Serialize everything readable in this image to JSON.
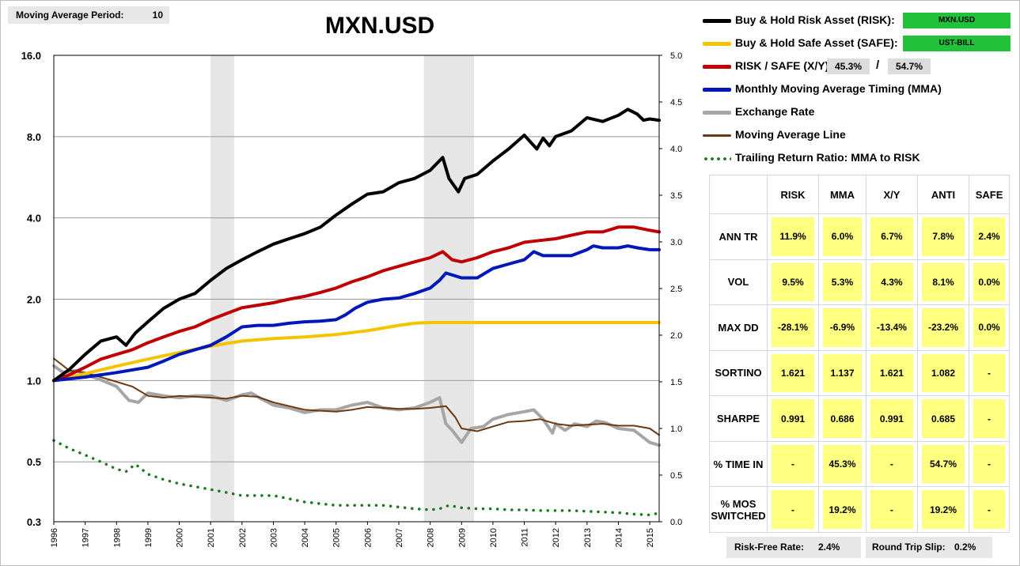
{
  "settings": {
    "mavg_label": "Moving Average Period:",
    "mavg_value": "10"
  },
  "chart_data": {
    "type": "line",
    "title": "MXN.USD",
    "x_years": [
      "1996",
      "1997",
      "1998",
      "1999",
      "2000",
      "2001",
      "2002",
      "2003",
      "2004",
      "2005",
      "2006",
      "2007",
      "2008",
      "2009",
      "2010",
      "2011",
      "2012",
      "2013",
      "2014",
      "2015"
    ],
    "y_left_ticks": [
      "0.3",
      "0.5",
      "1.0",
      "2.0",
      "4.0",
      "8.0",
      "16.0"
    ],
    "y_left_scale": "log",
    "y_right_ticks": [
      "0.0",
      "0.5",
      "1.0",
      "1.5",
      "2.0",
      "2.5",
      "3.0",
      "3.5",
      "4.0",
      "4.5",
      "5.0"
    ],
    "y_right_range": [
      0,
      5
    ],
    "shaded_periods": [
      [
        2001.0,
        2001.75
      ],
      [
        2007.8,
        2009.4
      ]
    ],
    "series": [
      {
        "name": "Buy & Hold Risk Asset (RISK):",
        "color": "#000000",
        "axis": "left",
        "x": [
          1996,
          1996.5,
          1997,
          1997.5,
          1998,
          1998.3,
          1998.6,
          1999,
          1999.5,
          2000,
          2000.5,
          2001,
          2001.5,
          2002,
          2002.5,
          2003,
          2003.5,
          2004,
          2004.5,
          2005,
          2005.5,
          2006,
          2006.5,
          2007,
          2007.5,
          2008,
          2008.4,
          2008.6,
          2008.9,
          2009.1,
          2009.5,
          2010,
          2010.5,
          2011,
          2011.4,
          2011.6,
          2011.8,
          2012,
          2012.5,
          2013,
          2013.5,
          2014,
          2014.3,
          2014.6,
          2014.8,
          2015,
          2015.3
        ],
        "values": [
          1.0,
          1.1,
          1.25,
          1.4,
          1.45,
          1.35,
          1.5,
          1.65,
          1.85,
          2.0,
          2.1,
          2.35,
          2.6,
          2.8,
          3.0,
          3.2,
          3.35,
          3.5,
          3.7,
          4.1,
          4.5,
          4.9,
          5.0,
          5.4,
          5.6,
          6.0,
          6.7,
          5.6,
          5.0,
          5.6,
          5.8,
          6.5,
          7.2,
          8.1,
          7.2,
          7.9,
          7.4,
          8.0,
          8.4,
          9.4,
          9.1,
          9.6,
          10.1,
          9.7,
          9.2,
          9.3,
          9.2
        ]
      },
      {
        "name": "Buy & Hold Safe Asset (SAFE):",
        "color": "#f5c400",
        "axis": "left",
        "x": [
          1996,
          1997,
          1998,
          1999,
          2000,
          2001,
          2002,
          2003,
          2004,
          2005,
          2006,
          2007,
          2007.5,
          2008,
          2009,
          2010,
          2011,
          2012,
          2013,
          2014,
          2015.3
        ],
        "values": [
          1.0,
          1.06,
          1.13,
          1.2,
          1.27,
          1.34,
          1.4,
          1.43,
          1.45,
          1.48,
          1.53,
          1.6,
          1.63,
          1.64,
          1.64,
          1.64,
          1.64,
          1.64,
          1.64,
          1.64,
          1.64
        ]
      },
      {
        "name": "RISK / SAFE (X/Y):",
        "color": "#c00000",
        "axis": "left",
        "x": [
          1996,
          1996.5,
          1997,
          1997.5,
          1998,
          1998.5,
          1999,
          1999.5,
          2000,
          2000.5,
          2001,
          2001.5,
          2002,
          2002.5,
          2003,
          2003.5,
          2004,
          2004.5,
          2005,
          2005.5,
          2006,
          2006.5,
          2007,
          2007.5,
          2008,
          2008.4,
          2008.7,
          2009,
          2009.5,
          2010,
          2010.5,
          2011,
          2011.5,
          2012,
          2012.5,
          2013,
          2013.5,
          2014,
          2014.5,
          2015,
          2015.3
        ],
        "values": [
          1.0,
          1.05,
          1.12,
          1.2,
          1.25,
          1.3,
          1.38,
          1.45,
          1.52,
          1.58,
          1.68,
          1.77,
          1.86,
          1.9,
          1.94,
          2.0,
          2.05,
          2.12,
          2.2,
          2.32,
          2.42,
          2.55,
          2.65,
          2.75,
          2.85,
          3.0,
          2.8,
          2.75,
          2.85,
          3.0,
          3.1,
          3.25,
          3.3,
          3.35,
          3.45,
          3.55,
          3.55,
          3.7,
          3.7,
          3.6,
          3.55
        ]
      },
      {
        "name": "Monthly Moving Average Timing (MMA)",
        "color": "#0018b8",
        "axis": "left",
        "x": [
          1996,
          1997,
          1998,
          1999,
          1999.5,
          2000,
          2000.5,
          2001,
          2001.5,
          2002,
          2002.5,
          2003,
          2003.5,
          2004,
          2004.5,
          2005,
          2005.3,
          2005.6,
          2006,
          2006.5,
          2007,
          2007.5,
          2008,
          2008.3,
          2008.5,
          2009,
          2009.5,
          2010,
          2010.5,
          2011,
          2011.3,
          2011.6,
          2012,
          2012.5,
          2013,
          2013.2,
          2013.5,
          2014,
          2014.3,
          2014.6,
          2015,
          2015.3
        ],
        "values": [
          1.0,
          1.03,
          1.07,
          1.12,
          1.18,
          1.25,
          1.3,
          1.35,
          1.45,
          1.58,
          1.6,
          1.6,
          1.63,
          1.65,
          1.66,
          1.68,
          1.75,
          1.85,
          1.95,
          2.0,
          2.02,
          2.1,
          2.2,
          2.35,
          2.5,
          2.4,
          2.4,
          2.6,
          2.7,
          2.8,
          3.0,
          2.9,
          2.9,
          2.9,
          3.05,
          3.15,
          3.1,
          3.1,
          3.15,
          3.1,
          3.05,
          3.05
        ]
      },
      {
        "name": "Exchange Rate",
        "color": "#a6a6a6",
        "axis": "right",
        "x": [
          1996,
          1996.3,
          1996.7,
          1997,
          1997.5,
          1998,
          1998.4,
          1998.7,
          1999,
          1999.5,
          2000,
          2000.5,
          2001,
          2001.5,
          2002,
          2002.3,
          2002.6,
          2003,
          2003.5,
          2004,
          2004.5,
          2005,
          2005.5,
          2006,
          2006.5,
          2007,
          2007.5,
          2008,
          2008.3,
          2008.5,
          2008.7,
          2009,
          2009.3,
          2009.7,
          2010,
          2010.5,
          2011,
          2011.3,
          2011.6,
          2011.9,
          2012,
          2012.3,
          2012.6,
          2013,
          2013.3,
          2013.6,
          2014,
          2014.5,
          2015,
          2015.3
        ],
        "values": [
          1.67,
          1.6,
          1.62,
          1.58,
          1.52,
          1.45,
          1.3,
          1.28,
          1.38,
          1.35,
          1.33,
          1.35,
          1.35,
          1.3,
          1.36,
          1.38,
          1.32,
          1.25,
          1.22,
          1.17,
          1.2,
          1.2,
          1.25,
          1.28,
          1.22,
          1.2,
          1.22,
          1.28,
          1.33,
          1.05,
          0.98,
          0.85,
          1.0,
          1.02,
          1.1,
          1.15,
          1.18,
          1.2,
          1.1,
          0.95,
          1.05,
          0.98,
          1.05,
          1.02,
          1.08,
          1.06,
          1.0,
          0.98,
          0.85,
          0.82
        ]
      },
      {
        "name": "Moving Average Line",
        "color": "#6b3a12",
        "axis": "right",
        "x": [
          1996,
          1996.5,
          1997,
          1997.5,
          1998,
          1998.5,
          1999,
          1999.5,
          2000,
          2000.5,
          2001,
          2001.5,
          2002,
          2002.5,
          2003,
          2003.5,
          2004,
          2004.5,
          2005,
          2005.5,
          2006,
          2006.5,
          2007,
          2007.5,
          2008,
          2008.5,
          2008.8,
          2009,
          2009.5,
          2010,
          2010.5,
          2011,
          2011.5,
          2012,
          2012.5,
          2013,
          2013.5,
          2014,
          2014.5,
          2015,
          2015.3
        ],
        "values": [
          1.75,
          1.62,
          1.6,
          1.55,
          1.5,
          1.45,
          1.35,
          1.33,
          1.35,
          1.34,
          1.33,
          1.32,
          1.35,
          1.34,
          1.28,
          1.24,
          1.2,
          1.19,
          1.18,
          1.2,
          1.23,
          1.22,
          1.21,
          1.21,
          1.22,
          1.24,
          1.12,
          1.0,
          0.97,
          1.02,
          1.07,
          1.08,
          1.1,
          1.05,
          1.03,
          1.04,
          1.05,
          1.03,
          1.03,
          1.0,
          0.93
        ]
      },
      {
        "name": "Trailing Return Ratio: MMA to RISK",
        "color": "#1a7a1a",
        "axis": "left",
        "style": "dotted",
        "x": [
          1996,
          1996.5,
          1997,
          1997.5,
          1998,
          1998.3,
          1998.6,
          1999,
          1999.5,
          2000,
          2000.5,
          2001,
          2001.5,
          2002,
          2002.5,
          2003,
          2003.5,
          2004,
          2004.5,
          2005,
          2005.5,
          2006,
          2006.5,
          2007,
          2007.5,
          2008,
          2008.3,
          2008.6,
          2009,
          2009.5,
          2010,
          2010.5,
          2011,
          2011.5,
          2012,
          2012.5,
          2013,
          2013.5,
          2014,
          2014.5,
          2015,
          2015.3
        ],
        "values": [
          0.6,
          0.56,
          0.53,
          0.5,
          0.47,
          0.46,
          0.49,
          0.45,
          0.43,
          0.415,
          0.405,
          0.395,
          0.385,
          0.375,
          0.375,
          0.375,
          0.365,
          0.355,
          0.35,
          0.345,
          0.345,
          0.345,
          0.345,
          0.34,
          0.335,
          0.332,
          0.335,
          0.345,
          0.338,
          0.335,
          0.335,
          0.332,
          0.332,
          0.33,
          0.33,
          0.33,
          0.328,
          0.326,
          0.324,
          0.32,
          0.318,
          0.323
        ]
      }
    ]
  },
  "legend": {
    "risk_label": "Buy & Hold Risk Asset (RISK):",
    "risk_tag": "MXN.USD",
    "safe_label": "Buy & Hold Safe Asset (SAFE):",
    "safe_tag": "UST-BILL",
    "ratio_label": "RISK / SAFE (X/Y):",
    "ratio_x": "45.3%",
    "ratio_sep": "/",
    "ratio_y": "54.7%",
    "mma_label": "Monthly Moving Average Timing (MMA)",
    "fx_label": "Exchange Rate",
    "mavg_line_label": "Moving Average Line",
    "trailing_label": "Trailing Return Ratio: MMA to RISK"
  },
  "stats": {
    "headers": [
      "",
      "RISK",
      "MMA",
      "X/Y",
      "ANTI",
      "SAFE"
    ],
    "rows": [
      {
        "label": "ANN TR",
        "values": [
          "11.9%",
          "6.0%",
          "6.7%",
          "7.8%",
          "2.4%"
        ]
      },
      {
        "label": "VOL",
        "values": [
          "9.5%",
          "5.3%",
          "4.3%",
          "8.1%",
          "0.0%"
        ]
      },
      {
        "label": "MAX DD",
        "values": [
          "-28.1%",
          "-6.9%",
          "-13.4%",
          "-23.2%",
          "0.0%"
        ]
      },
      {
        "label": "SORTINO",
        "values": [
          "1.621",
          "1.137",
          "1.621",
          "1.082",
          "-"
        ]
      },
      {
        "label": "SHARPE",
        "values": [
          "0.991",
          "0.686",
          "0.991",
          "0.685",
          "-"
        ]
      },
      {
        "label": "% TIME IN",
        "values": [
          "-",
          "45.3%",
          "-",
          "54.7%",
          "-"
        ]
      },
      {
        "label": "% MOS SWITCHED",
        "values": [
          "-",
          "19.2%",
          "-",
          "19.2%",
          "-"
        ]
      }
    ]
  },
  "footer": {
    "risk_free_label": "Risk-Free Rate:",
    "risk_free_value": "2.4%",
    "slip_label": "Round Trip Slip:",
    "slip_value": "0.2%"
  }
}
